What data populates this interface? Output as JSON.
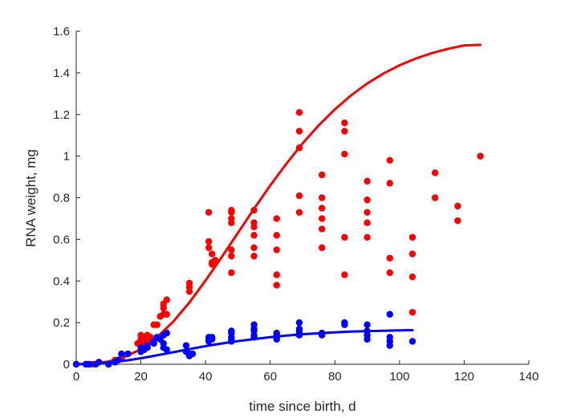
{
  "chart_data": {
    "type": "scatter",
    "title": "",
    "xlabel": "time since birth, d",
    "ylabel": "RNA weight, mg",
    "xlim": [
      0,
      140
    ],
    "ylim": [
      0,
      1.6
    ],
    "xticks": [
      0,
      20,
      40,
      60,
      80,
      100,
      120,
      140
    ],
    "yticks": [
      0,
      0.2,
      0.4,
      0.6,
      0.8,
      1,
      1.2,
      1.4,
      1.6
    ],
    "ytick_labels": [
      "0",
      "0.2",
      "0.4",
      "0.6",
      "0.8",
      "1",
      "1.2",
      "1.4",
      "1.6"
    ],
    "grid": false,
    "series": [
      {
        "color": "#ff0000",
        "points": [
          [
            0,
            0
          ],
          [
            3,
            0
          ],
          [
            5,
            0
          ],
          [
            7,
            0.01
          ],
          [
            10,
            0
          ],
          [
            12,
            0.02
          ],
          [
            14,
            0.03
          ],
          [
            16,
            0.05
          ],
          [
            19,
            0.1
          ],
          [
            20,
            0.12
          ],
          [
            20,
            0.14
          ],
          [
            21,
            0.1
          ],
          [
            21,
            0.13
          ],
          [
            22,
            0.14
          ],
          [
            22,
            0.12
          ],
          [
            23,
            0.13
          ],
          [
            24,
            0.19
          ],
          [
            25,
            0.19
          ],
          [
            26,
            0.23
          ],
          [
            27,
            0.24
          ],
          [
            27,
            0.27
          ],
          [
            27,
            0.29
          ],
          [
            28,
            0.31
          ],
          [
            28,
            0.24
          ],
          [
            35,
            0.35
          ],
          [
            35,
            0.37
          ],
          [
            35,
            0.39
          ],
          [
            41,
            0.73
          ],
          [
            41,
            0.59
          ],
          [
            41,
            0.56
          ],
          [
            42,
            0.53
          ],
          [
            42,
            0.48
          ],
          [
            42,
            0.49
          ],
          [
            43,
            0.5
          ],
          [
            48,
            0.74
          ],
          [
            48,
            0.73
          ],
          [
            48,
            0.7
          ],
          [
            48,
            0.68
          ],
          [
            48,
            0.55
          ],
          [
            48,
            0.52
          ],
          [
            48,
            0.44
          ],
          [
            55,
            0.74
          ],
          [
            55,
            0.68
          ],
          [
            55,
            0.66
          ],
          [
            55,
            0.62
          ],
          [
            55,
            0.56
          ],
          [
            55,
            0.52
          ],
          [
            62,
            0.7
          ],
          [
            62,
            0.62
          ],
          [
            62,
            0.55
          ],
          [
            62,
            0.43
          ],
          [
            62,
            0.38
          ],
          [
            69,
            1.21
          ],
          [
            69,
            1.12
          ],
          [
            69,
            1.04
          ],
          [
            69,
            0.81
          ],
          [
            69,
            0.73
          ],
          [
            76,
            0.91
          ],
          [
            76,
            0.8
          ],
          [
            76,
            0.75
          ],
          [
            76,
            0.7
          ],
          [
            76,
            0.65
          ],
          [
            76,
            0.56
          ],
          [
            83,
            1.16
          ],
          [
            83,
            1.12
          ],
          [
            83,
            1.01
          ],
          [
            83,
            0.61
          ],
          [
            83,
            0.43
          ],
          [
            90,
            0.88
          ],
          [
            90,
            0.79
          ],
          [
            90,
            0.73
          ],
          [
            90,
            0.68
          ],
          [
            90,
            0.61
          ],
          [
            97,
            0.98
          ],
          [
            97,
            0.87
          ],
          [
            97,
            0.51
          ],
          [
            97,
            0.44
          ],
          [
            104,
            0.61
          ],
          [
            104,
            0.53
          ],
          [
            104,
            0.42
          ],
          [
            104,
            0.25
          ],
          [
            111,
            0.92
          ],
          [
            111,
            0.8
          ],
          [
            118,
            0.76
          ],
          [
            118,
            0.69
          ],
          [
            125,
            1.0
          ]
        ],
        "curve": [
          [
            0,
            0
          ],
          [
            5,
            0.003
          ],
          [
            10,
            0.013
          ],
          [
            15,
            0.035
          ],
          [
            20,
            0.073
          ],
          [
            25,
            0.13
          ],
          [
            30,
            0.205
          ],
          [
            35,
            0.297
          ],
          [
            40,
            0.402
          ],
          [
            45,
            0.515
          ],
          [
            50,
            0.631
          ],
          [
            55,
            0.747
          ],
          [
            60,
            0.859
          ],
          [
            65,
            0.964
          ],
          [
            70,
            1.061
          ],
          [
            75,
            1.148
          ],
          [
            80,
            1.225
          ],
          [
            85,
            1.292
          ],
          [
            90,
            1.349
          ],
          [
            95,
            1.397
          ],
          [
            100,
            1.437
          ],
          [
            105,
            1.469
          ],
          [
            110,
            1.495
          ],
          [
            115,
            1.516
          ],
          [
            120,
            1.532
          ],
          [
            125,
            1.535
          ]
        ]
      },
      {
        "color": "#0000ff",
        "points": [
          [
            0,
            0
          ],
          [
            3,
            0
          ],
          [
            4,
            0
          ],
          [
            6,
            0
          ],
          [
            7,
            0.01
          ],
          [
            10,
            0
          ],
          [
            12,
            0.01
          ],
          [
            13,
            0.02
          ],
          [
            14,
            0.05
          ],
          [
            16,
            0.05
          ],
          [
            20,
            0.06
          ],
          [
            20,
            0.08
          ],
          [
            21,
            0.07
          ],
          [
            22,
            0.08
          ],
          [
            22,
            0.09
          ],
          [
            24,
            0.1
          ],
          [
            24,
            0.11
          ],
          [
            25,
            0.13
          ],
          [
            26,
            0.12
          ],
          [
            27,
            0.08
          ],
          [
            27,
            0.1
          ],
          [
            27,
            0.14
          ],
          [
            28,
            0.15
          ],
          [
            28,
            0.07
          ],
          [
            34,
            0.09
          ],
          [
            34,
            0.06
          ],
          [
            35,
            0.05
          ],
          [
            35,
            0.04
          ],
          [
            36,
            0.05
          ],
          [
            41,
            0.13
          ],
          [
            41,
            0.12
          ],
          [
            41,
            0.11
          ],
          [
            42,
            0.13
          ],
          [
            42,
            0.12
          ],
          [
            48,
            0.16
          ],
          [
            48,
            0.15
          ],
          [
            48,
            0.13
          ],
          [
            48,
            0.12
          ],
          [
            48,
            0.11
          ],
          [
            55,
            0.19
          ],
          [
            55,
            0.17
          ],
          [
            55,
            0.16
          ],
          [
            55,
            0.14
          ],
          [
            55,
            0.13
          ],
          [
            62,
            0.15
          ],
          [
            62,
            0.14
          ],
          [
            62,
            0.13
          ],
          [
            62,
            0.12
          ],
          [
            69,
            0.2
          ],
          [
            69,
            0.17
          ],
          [
            69,
            0.16
          ],
          [
            69,
            0.15
          ],
          [
            69,
            0.14
          ],
          [
            76,
            0.15
          ],
          [
            76,
            0.14
          ],
          [
            83,
            0.2
          ],
          [
            83,
            0.19
          ],
          [
            90,
            0.19
          ],
          [
            90,
            0.16
          ],
          [
            90,
            0.14
          ],
          [
            90,
            0.12
          ],
          [
            97,
            0.24
          ],
          [
            97,
            0.13
          ],
          [
            97,
            0.11
          ],
          [
            97,
            0.09
          ],
          [
            104,
            0.11
          ]
        ],
        "curve": [
          [
            0,
            0
          ],
          [
            5,
            0.002
          ],
          [
            10,
            0.008
          ],
          [
            15,
            0.017
          ],
          [
            20,
            0.029
          ],
          [
            25,
            0.043
          ],
          [
            30,
            0.058
          ],
          [
            35,
            0.073
          ],
          [
            40,
            0.087
          ],
          [
            45,
            0.1
          ],
          [
            50,
            0.111
          ],
          [
            55,
            0.121
          ],
          [
            60,
            0.13
          ],
          [
            65,
            0.138
          ],
          [
            70,
            0.144
          ],
          [
            75,
            0.149
          ],
          [
            80,
            0.153
          ],
          [
            85,
            0.157
          ],
          [
            90,
            0.159
          ],
          [
            95,
            0.161
          ],
          [
            100,
            0.163
          ],
          [
            104,
            0.164
          ]
        ]
      }
    ]
  }
}
